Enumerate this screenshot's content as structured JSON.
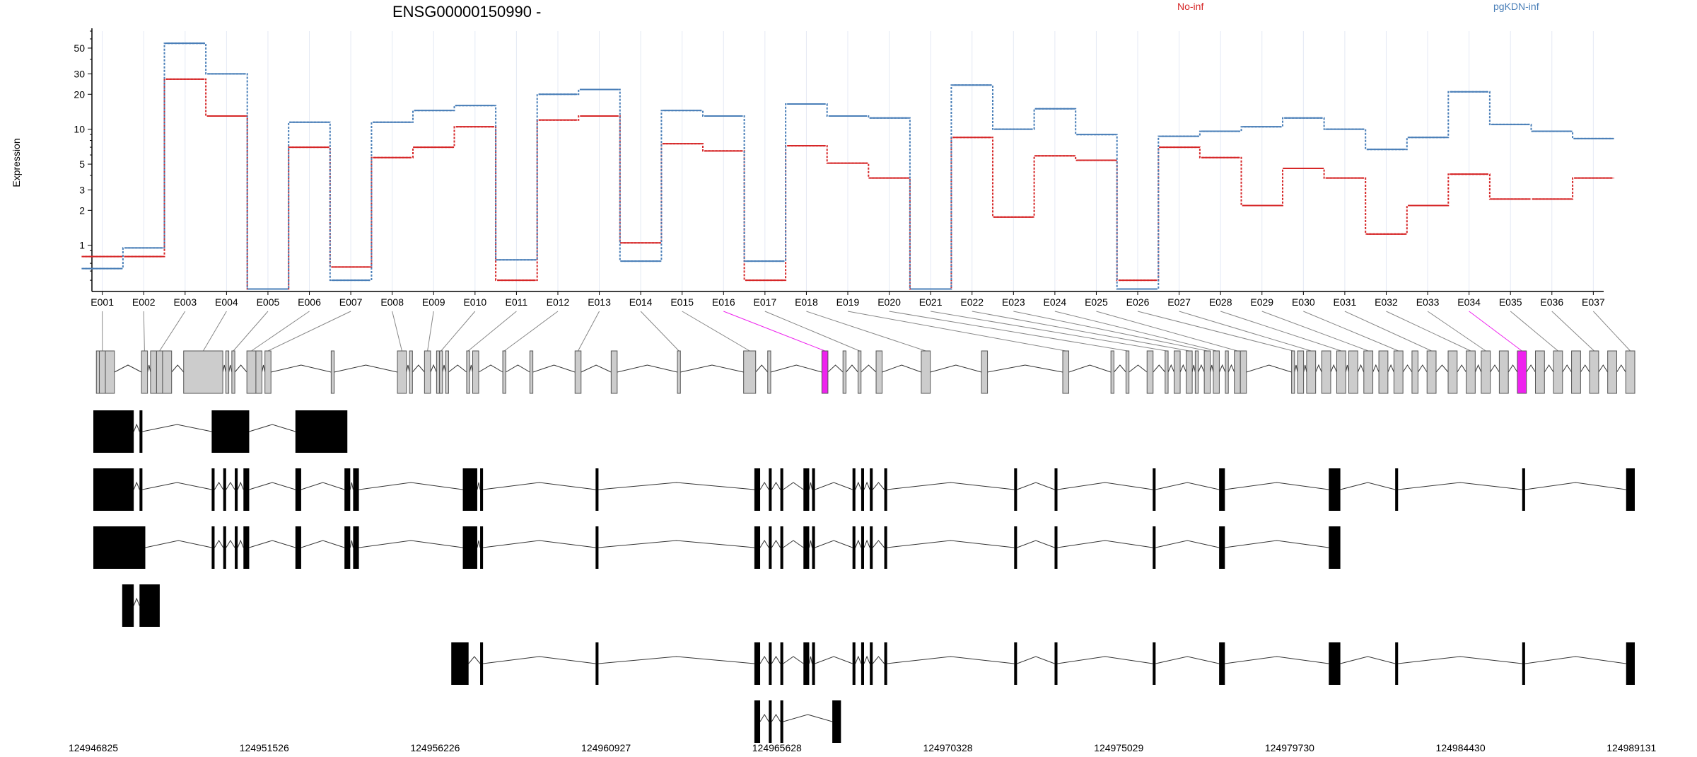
{
  "chart_data": {
    "type": "line",
    "title": "ENSG00000150990 -",
    "ylabel": "Expression",
    "yscale": "log",
    "ylim": [
      0.4,
      70
    ],
    "ytick_labels": [
      "1",
      "2",
      "3",
      "5",
      "10",
      "20",
      "30",
      "50"
    ],
    "legend_placement": "top",
    "categories": [
      "E001",
      "E002",
      "E003",
      "E004",
      "E005",
      "E006",
      "E007",
      "E008",
      "E009",
      "E010",
      "E011",
      "E012",
      "E013",
      "E014",
      "E015",
      "E016",
      "E017",
      "E018",
      "E019",
      "E020",
      "E021",
      "E022",
      "E023",
      "E024",
      "E025",
      "E026",
      "E027",
      "E028",
      "E029",
      "E030",
      "E031",
      "E032",
      "E033",
      "E034",
      "E035",
      "E036",
      "E037"
    ],
    "series": [
      {
        "name": "No-inf",
        "color": "#d62728",
        "values": [
          0.8,
          0.8,
          27,
          13,
          0.42,
          7,
          0.65,
          5.7,
          7,
          10.5,
          0.5,
          12,
          13,
          1.05,
          7.5,
          6.5,
          0.5,
          7.2,
          5.1,
          3.8,
          0.42,
          8.5,
          1.75,
          5.9,
          5.4,
          0.5,
          7,
          5.7,
          2.2,
          4.6,
          3.8,
          1.25,
          2.2,
          4.1,
          2.5,
          2.5,
          3.8
        ]
      },
      {
        "name": "pgKDN-inf",
        "color": "#4a7fb8",
        "values": [
          0.63,
          0.95,
          55,
          30,
          0.42,
          11.5,
          0.5,
          11.5,
          14.5,
          16,
          0.75,
          20,
          22,
          0.73,
          14.5,
          13,
          0.73,
          16.5,
          13,
          12.5,
          0.42,
          24,
          10,
          15,
          9,
          0.42,
          8.7,
          9.6,
          10.5,
          12.5,
          10,
          6.7,
          8.5,
          21,
          11,
          9.6,
          8.3
        ]
      }
    ],
    "genomic_ticks": [
      "124946825",
      "124951526",
      "124956226",
      "124960927",
      "124965628",
      "124970328",
      "124975029",
      "124979730",
      "124984430",
      "124989131"
    ],
    "gene_model": {
      "exons": [
        [
          1,
          2
        ],
        [
          2,
          4
        ],
        [
          4,
          7
        ],
        [
          16,
          18
        ],
        [
          19,
          21
        ],
        [
          21,
          23
        ],
        [
          23,
          26
        ],
        [
          30,
          43
        ],
        [
          44,
          45
        ],
        [
          46,
          47
        ],
        [
          51,
          54
        ],
        [
          54,
          56
        ],
        [
          57,
          59
        ],
        [
          79,
          80
        ],
        [
          101,
          104
        ],
        [
          105,
          106
        ],
        [
          110,
          112
        ],
        [
          114,
          115
        ],
        [
          115,
          116
        ],
        [
          117,
          118
        ],
        [
          124,
          125
        ],
        [
          126,
          128
        ],
        [
          136,
          137
        ],
        [
          145,
          146
        ],
        [
          160,
          162
        ],
        [
          172,
          174
        ],
        [
          194,
          195
        ],
        [
          216,
          220
        ],
        [
          224,
          225
        ],
        [
          242,
          244
        ],
        [
          249,
          250
        ],
        [
          254,
          255
        ],
        [
          260,
          262
        ],
        [
          275,
          278
        ],
        [
          295,
          297
        ],
        [
          322,
          324
        ],
        [
          338,
          339
        ],
        [
          343,
          344
        ],
        [
          350,
          352
        ],
        [
          356,
          357
        ],
        [
          359,
          361
        ],
        [
          363,
          365
        ],
        [
          366,
          367
        ],
        [
          369,
          371
        ],
        [
          372,
          374
        ],
        [
          376,
          377
        ],
        [
          379,
          381
        ],
        [
          381,
          383
        ],
        [
          398,
          399
        ],
        [
          400,
          402
        ],
        [
          403,
          406
        ],
        [
          408,
          411
        ],
        [
          413,
          416
        ],
        [
          417,
          420
        ],
        [
          422,
          425
        ],
        [
          427,
          430
        ],
        [
          432,
          435
        ],
        [
          438,
          440
        ],
        [
          443,
          446
        ],
        [
          450,
          453
        ],
        [
          456,
          459
        ],
        [
          461,
          464
        ],
        [
          467,
          470
        ],
        [
          473,
          476
        ],
        [
          479,
          482
        ],
        [
          485,
          488
        ],
        [
          491,
          494
        ],
        [
          497,
          500
        ],
        [
          503,
          506
        ],
        [
          509,
          512
        ]
      ],
      "highlight_exons": [
        "E016",
        "E034"
      ],
      "highlight_color": "#ee22ee",
      "transcripts": [
        [
          [
            0,
            14
          ],
          [
            16,
            17
          ],
          [
            41,
            54
          ],
          [
            70,
            88
          ]
        ],
        [
          [
            0,
            14
          ],
          [
            16,
            17
          ],
          [
            41,
            42
          ],
          [
            45,
            46
          ],
          [
            49,
            50
          ],
          [
            52,
            54
          ],
          [
            70,
            72
          ],
          [
            87,
            89
          ],
          [
            90,
            92
          ],
          [
            128,
            133
          ],
          [
            134,
            135
          ],
          [
            174,
            175
          ],
          [
            229,
            231
          ],
          [
            234,
            235
          ],
          [
            238,
            239
          ],
          [
            246,
            248
          ],
          [
            249,
            250
          ],
          [
            263,
            264
          ],
          [
            266,
            267
          ],
          [
            269,
            270
          ],
          [
            274,
            275
          ],
          [
            319,
            320
          ],
          [
            333,
            334
          ],
          [
            367,
            368
          ],
          [
            390,
            392
          ],
          [
            428,
            432
          ],
          [
            451,
            452
          ],
          [
            495,
            496
          ],
          [
            531,
            534
          ]
        ],
        [
          [
            0,
            18
          ],
          [
            41,
            42
          ],
          [
            45,
            46
          ],
          [
            49,
            50
          ],
          [
            52,
            54
          ],
          [
            70,
            72
          ],
          [
            87,
            89
          ],
          [
            90,
            92
          ],
          [
            128,
            133
          ],
          [
            134,
            135
          ],
          [
            174,
            175
          ],
          [
            229,
            231
          ],
          [
            234,
            235
          ],
          [
            238,
            239
          ],
          [
            246,
            248
          ],
          [
            249,
            250
          ],
          [
            263,
            264
          ],
          [
            266,
            267
          ],
          [
            269,
            270
          ],
          [
            274,
            275
          ],
          [
            319,
            320
          ],
          [
            333,
            334
          ],
          [
            367,
            368
          ],
          [
            390,
            392
          ],
          [
            428,
            432
          ]
        ],
        [
          [
            10,
            14
          ],
          [
            16,
            23
          ]
        ],
        [
          [
            124,
            130
          ],
          [
            134,
            135
          ],
          [
            174,
            175
          ],
          [
            229,
            231
          ],
          [
            234,
            235
          ],
          [
            238,
            239
          ],
          [
            246,
            248
          ],
          [
            249,
            250
          ],
          [
            263,
            264
          ],
          [
            266,
            267
          ],
          [
            269,
            270
          ],
          [
            274,
            275
          ],
          [
            319,
            320
          ],
          [
            333,
            334
          ],
          [
            367,
            368
          ],
          [
            390,
            392
          ],
          [
            428,
            432
          ],
          [
            451,
            452
          ],
          [
            495,
            496
          ],
          [
            531,
            534
          ]
        ],
        [
          [
            229,
            231
          ],
          [
            234,
            235
          ],
          [
            238,
            239
          ],
          [
            256,
            259
          ]
        ]
      ]
    }
  }
}
